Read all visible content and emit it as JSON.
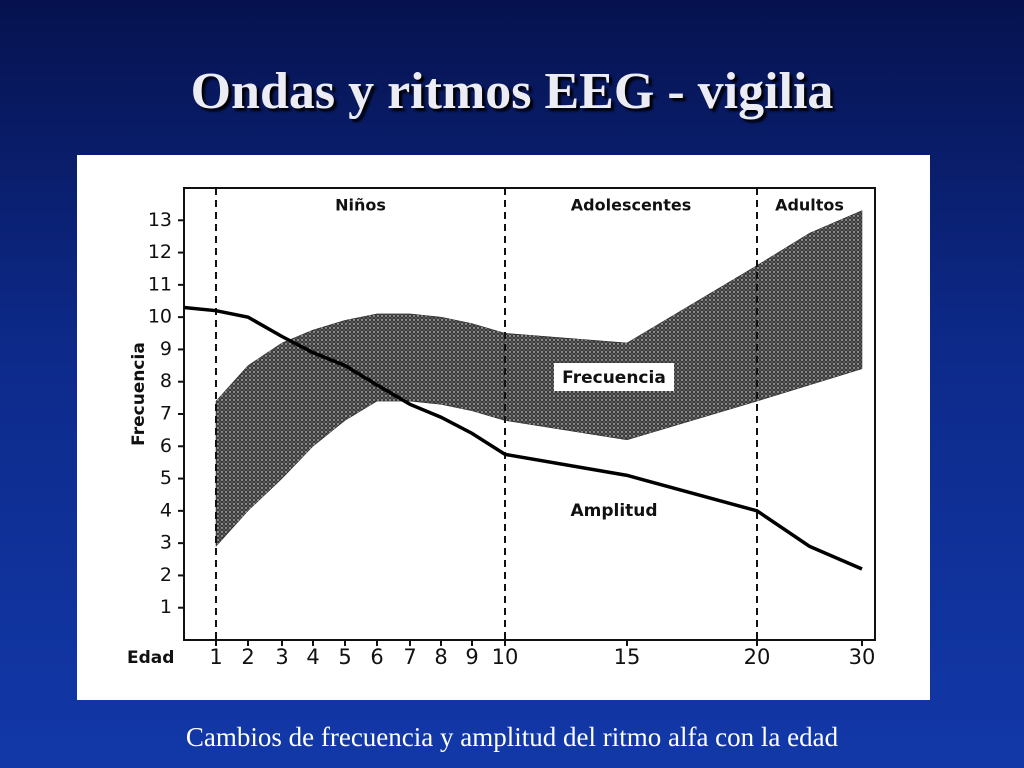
{
  "title": "Ondas y ritmos EEG - vigilia",
  "caption": "Cambios de frecuencia y amplitud del ritmo alfa con la edad",
  "chart_data": {
    "type": "range-line",
    "y_label": "Frecuencia",
    "x_label": "Edad",
    "xlim": [
      0,
      30
    ],
    "xticks": [
      1,
      2,
      3,
      4,
      5,
      6,
      7,
      8,
      9,
      10,
      15,
      20,
      30
    ],
    "ylim": [
      0,
      14
    ],
    "yticks": [
      1,
      2,
      3,
      4,
      5,
      6,
      7,
      8,
      9,
      10,
      11,
      12,
      13
    ],
    "dividers": [
      1,
      10,
      20
    ],
    "regions": [
      "Niños",
      "Adolescentes",
      "Adultos"
    ],
    "series": [
      {
        "name": "Frecuencia",
        "color": "#222222",
        "x": [
          1,
          2,
          3,
          4,
          5,
          6,
          7,
          8,
          9,
          10,
          15,
          20,
          25,
          30
        ],
        "low": [
          2.9,
          4.0,
          5.0,
          6.0,
          6.8,
          7.4,
          7.4,
          7.3,
          7.1,
          6.8,
          6.2,
          7.4,
          7.9,
          8.4
        ],
        "high": [
          7.4,
          8.5,
          9.2,
          9.6,
          9.9,
          10.1,
          10.1,
          10.0,
          9.8,
          9.5,
          9.2,
          11.6,
          12.6,
          13.3
        ]
      },
      {
        "name": "Amplitud",
        "color": "#000000",
        "x": [
          0,
          1,
          2,
          3,
          4,
          5,
          6,
          7,
          8,
          9,
          10,
          15,
          20,
          25,
          30
        ],
        "values": [
          10.3,
          10.2,
          10.0,
          9.4,
          8.9,
          8.5,
          7.9,
          7.3,
          6.9,
          6.4,
          5.75,
          5.1,
          4.0,
          2.9,
          2.2
        ]
      }
    ]
  }
}
